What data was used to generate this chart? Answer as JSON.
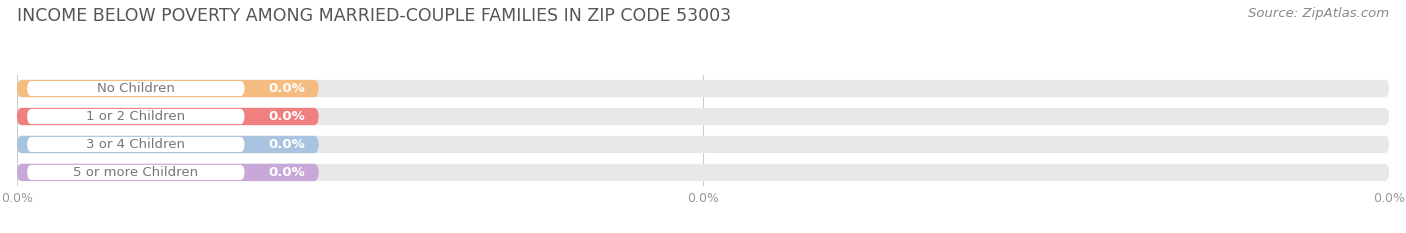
{
  "title": "INCOME BELOW POVERTY AMONG MARRIED-COUPLE FAMILIES IN ZIP CODE 53003",
  "source": "Source: ZipAtlas.com",
  "categories": [
    "No Children",
    "1 or 2 Children",
    "3 or 4 Children",
    "5 or more Children"
  ],
  "values": [
    0.0,
    0.0,
    0.0,
    0.0
  ],
  "bar_colors": [
    "#f5bc82",
    "#f08080",
    "#a8c4e0",
    "#c8a8d8"
  ],
  "bar_bg_color": "#e8e8e8",
  "background_color": "#ffffff",
  "xlim": [
    0,
    100
  ],
  "xticks": [
    0,
    50,
    100
  ],
  "xtick_labels": [
    "0.0%",
    "0.0%",
    "0.0%"
  ],
  "title_fontsize": 12.5,
  "source_fontsize": 9.5,
  "label_fontsize": 9.5,
  "value_fontsize": 9.5,
  "bar_height": 0.62,
  "grid_color": "#cccccc",
  "label_color": "#777777",
  "value_color": "#ffffff",
  "tick_color": "#999999"
}
